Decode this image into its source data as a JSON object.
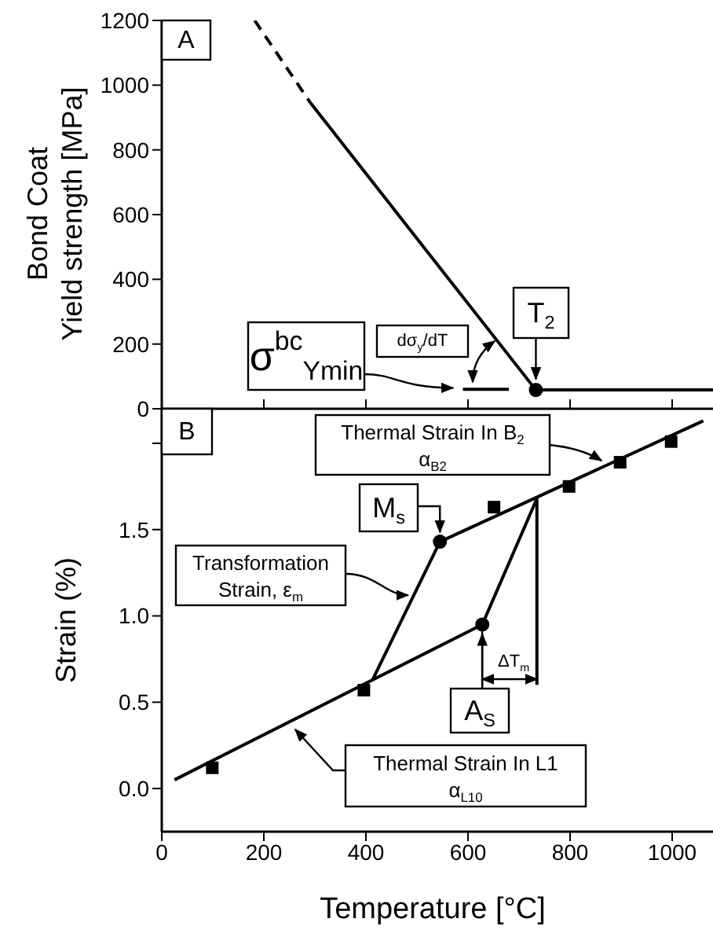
{
  "chart_data": [
    {
      "type": "line",
      "ylabel": "Bond Coat\nYield strength [MPa]",
      "xlim": [
        0,
        1080
      ],
      "ylim": [
        0,
        1200
      ],
      "xticks": [
        {
          "value": 200,
          "label": null
        },
        {
          "value": 400,
          "label": null
        },
        {
          "value": 600,
          "label": null
        },
        {
          "value": 800,
          "label": null
        },
        {
          "value": 1000,
          "label": null
        }
      ],
      "yticks": [
        0,
        200,
        400,
        600,
        800,
        1000,
        1200
      ],
      "tick_labels": "y",
      "series": [
        {
          "line_style": "dashed",
          "marker": "none",
          "color": "#000000",
          "x": [
            182,
            291
          ],
          "values": [
            1200,
            946
          ]
        },
        {
          "line_style": "solid",
          "marker": "none",
          "color": "#000000",
          "x": [
            291,
            733,
            1080
          ],
          "values": [
            946,
            58,
            58
          ]
        },
        {
          "line_style": "solid",
          "marker": "none",
          "color": "#000000",
          "x": [
            590,
            680
          ],
          "values": [
            60,
            60
          ]
        },
        {
          "type": "scatter",
          "marker": "circle",
          "color": "#000000",
          "x": [
            733
          ],
          "values": [
            58
          ]
        }
      ],
      "annotations": [
        "A",
        {
          "text": "σ$^{bc}$$_{Ymin}$",
          "x": 580,
          "y": 60
        },
        "dσ$_{y}$/dT",
        {
          "text": "T$_{2}$",
          "x": 733,
          "y": 58
        }
      ]
    },
    {
      "type": "line",
      "xlabel": "Temperature  [°C]",
      "ylabel": "Strain (%)",
      "xlim": [
        0,
        1080
      ],
      "ylim": [
        -0.25,
        2.2
      ],
      "xticks": [
        0,
        200,
        400,
        600,
        800,
        1000
      ],
      "yticks": [
        {
          "value": 0,
          "label": "0.0"
        },
        {
          "value": 0.5,
          "label": "0.5"
        },
        {
          "value": 1,
          "label": "1.0"
        },
        1.5,
        {
          "value": 2,
          "label": null
        }
      ],
      "series": [
        {
          "line_style": "solid",
          "marker": "none",
          "color": "#000000",
          "x": [
            25,
            628
          ],
          "values": [
            0.05,
            0.95
          ]
        },
        {
          "line_style": "solid",
          "marker": "none",
          "color": "#000000",
          "x": [
            545,
            1061
          ],
          "values": [
            1.43,
            2.13
          ]
        },
        {
          "line_style": "solid",
          "marker": "none",
          "color": "#000000",
          "x": [
            413,
            545
          ],
          "values": [
            0.63,
            1.43
          ]
        },
        {
          "line_style": "solid",
          "marker": "none",
          "color": "#000000",
          "x": [
            628,
            735
          ],
          "values": [
            0.95,
            1.68
          ]
        },
        {
          "line_style": "solid",
          "marker": "none",
          "color": "#000000",
          "x": [
            735,
            735
          ],
          "values": [
            1.68,
            0.6
          ]
        },
        {
          "type": "scatter",
          "marker": "square",
          "color": "#000000",
          "x": [
            99,
            396,
            651,
            798,
            898,
            998
          ],
          "values": [
            0.12,
            0.57,
            1.63,
            1.75,
            1.89,
            2.01
          ]
        },
        {
          "type": "scatter",
          "marker": "circle",
          "color": "#000000",
          "x": [
            545,
            628
          ],
          "values": [
            1.43,
            0.95
          ]
        }
      ],
      "annotations": [
        "B",
        "Thermal Strain In B$_{2}$\nα$_{B2}$",
        {
          "text": "M$_{s}$",
          "x": 545,
          "y": 1.43
        },
        {
          "text": "Transformation\nStrain, ε$_{m}$",
          "x": 495,
          "y": 1.12
        },
        {
          "text": "A$_{S}$",
          "x": 628,
          "y": 0.95
        },
        "ΔT$_{m}$",
        "Thermal Strain In L1\nα$_{L10}$"
      ]
    }
  ]
}
